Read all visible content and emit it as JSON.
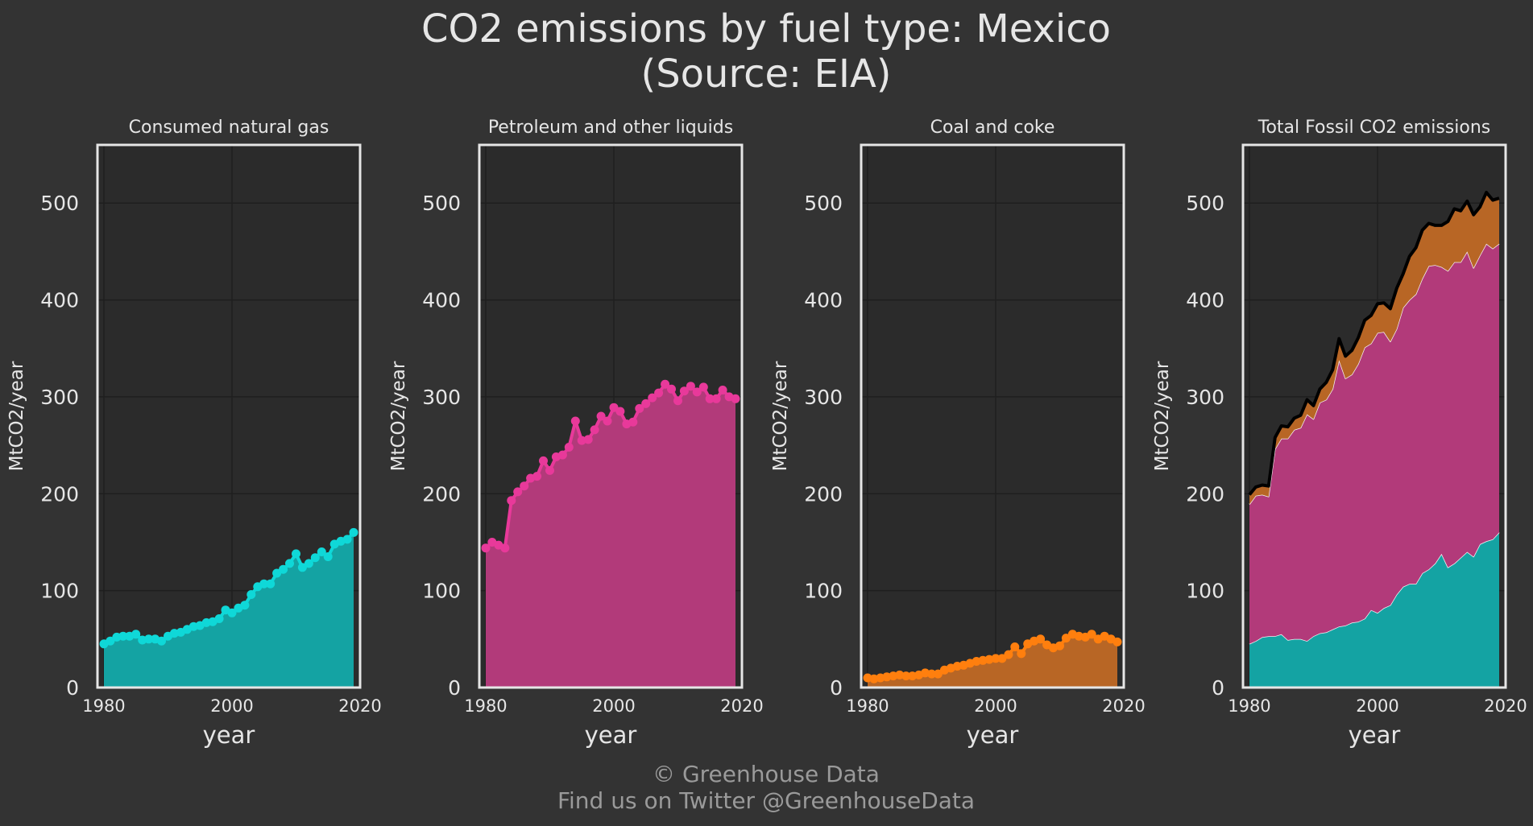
{
  "figure": {
    "title_line1": "CO2 emissions by fuel type: Mexico",
    "title_line2": "(Source: EIA)",
    "footer_line1": "© Greenhouse Data",
    "footer_line2": "Find us on Twitter @GreenhouseData"
  },
  "colors": {
    "background": "#333333",
    "panel_bg": "#2b2b2b",
    "grid": "#1f1f1f",
    "frame": "#e6e6e6",
    "text": "#e6e6e6",
    "footer_text": "#9a9a9a",
    "gas": "#0fd8d8",
    "gas_fill": "#14a3a3",
    "petroleum": "#e8399a",
    "petroleum_fill": "#b23a7a",
    "coal": "#ff7f0e",
    "coal_fill": "#b86625",
    "total_line": "#000000"
  },
  "chart_data": [
    {
      "type": "area",
      "title": "Consumed natural gas",
      "xlabel": "year",
      "ylabel": "MtCO2/year",
      "xlim": [
        1979,
        2020
      ],
      "ylim": [
        0,
        560
      ],
      "xticks": [
        "1980",
        "2000",
        "2020"
      ],
      "yticks": [
        "0",
        "100",
        "200",
        "300",
        "400",
        "500"
      ],
      "grid": true,
      "x": [
        1980,
        1981,
        1982,
        1983,
        1984,
        1985,
        1986,
        1987,
        1988,
        1989,
        1990,
        1991,
        1992,
        1993,
        1994,
        1995,
        1996,
        1997,
        1998,
        1999,
        2000,
        2001,
        2002,
        2003,
        2004,
        2005,
        2006,
        2007,
        2008,
        2009,
        2010,
        2011,
        2012,
        2013,
        2014,
        2015,
        2016,
        2017,
        2018,
        2019
      ],
      "series": [
        {
          "name": "Consumed natural gas",
          "values": [
            45,
            48,
            52,
            53,
            53,
            55,
            49,
            50,
            50,
            48,
            53,
            56,
            57,
            60,
            63,
            64,
            67,
            68,
            71,
            80,
            77,
            82,
            85,
            96,
            104,
            107,
            107,
            118,
            122,
            128,
            138,
            124,
            128,
            134,
            140,
            135,
            148,
            151,
            153,
            160
          ]
        }
      ]
    },
    {
      "type": "area",
      "title": "Petroleum and other liquids",
      "xlabel": "year",
      "ylabel": "MtCO2/year",
      "xlim": [
        1979,
        2020
      ],
      "ylim": [
        0,
        560
      ],
      "xticks": [
        "1980",
        "2000",
        "2020"
      ],
      "yticks": [
        "0",
        "100",
        "200",
        "300",
        "400",
        "500"
      ],
      "grid": true,
      "x": [
        1980,
        1981,
        1982,
        1983,
        1984,
        1985,
        1986,
        1987,
        1988,
        1989,
        1990,
        1991,
        1992,
        1993,
        1994,
        1995,
        1996,
        1997,
        1998,
        1999,
        2000,
        2001,
        2002,
        2003,
        2004,
        2005,
        2006,
        2007,
        2008,
        2009,
        2010,
        2011,
        2012,
        2013,
        2014,
        2015,
        2016,
        2017,
        2018,
        2019
      ],
      "series": [
        {
          "name": "Petroleum and other liquids",
          "values": [
            144,
            150,
            147,
            144,
            193,
            202,
            208,
            216,
            218,
            234,
            224,
            238,
            240,
            248,
            275,
            255,
            256,
            266,
            280,
            275,
            289,
            285,
            272,
            274,
            288,
            293,
            299,
            304,
            313,
            308,
            296,
            306,
            311,
            305,
            310,
            298,
            298,
            307,
            300,
            298
          ]
        }
      ]
    },
    {
      "type": "area",
      "title": "Coal and coke",
      "xlabel": "year",
      "ylabel": "MtCO2/year",
      "xlim": [
        1979,
        2020
      ],
      "ylim": [
        0,
        560
      ],
      "xticks": [
        "1980",
        "2000",
        "2020"
      ],
      "yticks": [
        "0",
        "100",
        "200",
        "300",
        "400",
        "500"
      ],
      "grid": true,
      "x": [
        1980,
        1981,
        1982,
        1983,
        1984,
        1985,
        1986,
        1987,
        1988,
        1989,
        1990,
        1991,
        1992,
        1993,
        1994,
        1995,
        1996,
        1997,
        1998,
        1999,
        2000,
        2001,
        2002,
        2003,
        2004,
        2005,
        2006,
        2007,
        2008,
        2009,
        2010,
        2011,
        2012,
        2013,
        2014,
        2015,
        2016,
        2017,
        2018,
        2019
      ],
      "series": [
        {
          "name": "Coal and coke",
          "values": [
            10,
            9,
            10,
            11,
            12,
            13,
            12,
            12,
            13,
            15,
            14,
            14,
            18,
            20,
            22,
            23,
            25,
            27,
            28,
            29,
            30,
            30,
            34,
            42,
            35,
            45,
            48,
            50,
            44,
            41,
            43,
            51,
            55,
            53,
            52,
            55,
            50,
            53,
            50,
            47
          ]
        }
      ]
    },
    {
      "type": "area",
      "title": "Total Fossil CO2 emissions",
      "xlabel": "year",
      "ylabel": "MtCO2/year",
      "xlim": [
        1979,
        2020
      ],
      "ylim": [
        0,
        560
      ],
      "xticks": [
        "1980",
        "2000",
        "2020"
      ],
      "yticks": [
        "0",
        "100",
        "200",
        "300",
        "400",
        "500"
      ],
      "grid": true,
      "stacked": true,
      "x": [
        1980,
        1981,
        1982,
        1983,
        1984,
        1985,
        1986,
        1987,
        1988,
        1989,
        1990,
        1991,
        1992,
        1993,
        1994,
        1995,
        1996,
        1997,
        1998,
        1999,
        2000,
        2001,
        2002,
        2003,
        2004,
        2005,
        2006,
        2007,
        2008,
        2009,
        2010,
        2011,
        2012,
        2013,
        2014,
        2015,
        2016,
        2017,
        2018,
        2019
      ],
      "series": [
        {
          "name": "Consumed natural gas",
          "values": [
            45,
            48,
            52,
            53,
            53,
            55,
            49,
            50,
            50,
            48,
            53,
            56,
            57,
            60,
            63,
            64,
            67,
            68,
            71,
            80,
            77,
            82,
            85,
            96,
            104,
            107,
            107,
            118,
            122,
            128,
            138,
            124,
            128,
            134,
            140,
            135,
            148,
            151,
            153,
            160
          ]
        },
        {
          "name": "Petroleum and other liquids",
          "values": [
            144,
            150,
            147,
            144,
            193,
            202,
            208,
            216,
            218,
            234,
            224,
            238,
            240,
            248,
            275,
            255,
            256,
            266,
            280,
            275,
            289,
            285,
            272,
            274,
            288,
            293,
            299,
            304,
            313,
            308,
            296,
            306,
            311,
            305,
            310,
            298,
            298,
            307,
            300,
            298
          ]
        },
        {
          "name": "Coal and coke",
          "values": [
            10,
            9,
            10,
            11,
            12,
            13,
            12,
            12,
            13,
            15,
            14,
            14,
            18,
            20,
            22,
            23,
            25,
            27,
            28,
            29,
            30,
            30,
            34,
            42,
            35,
            45,
            48,
            50,
            44,
            41,
            43,
            51,
            55,
            53,
            52,
            55,
            50,
            53,
            50,
            47
          ]
        }
      ]
    }
  ]
}
